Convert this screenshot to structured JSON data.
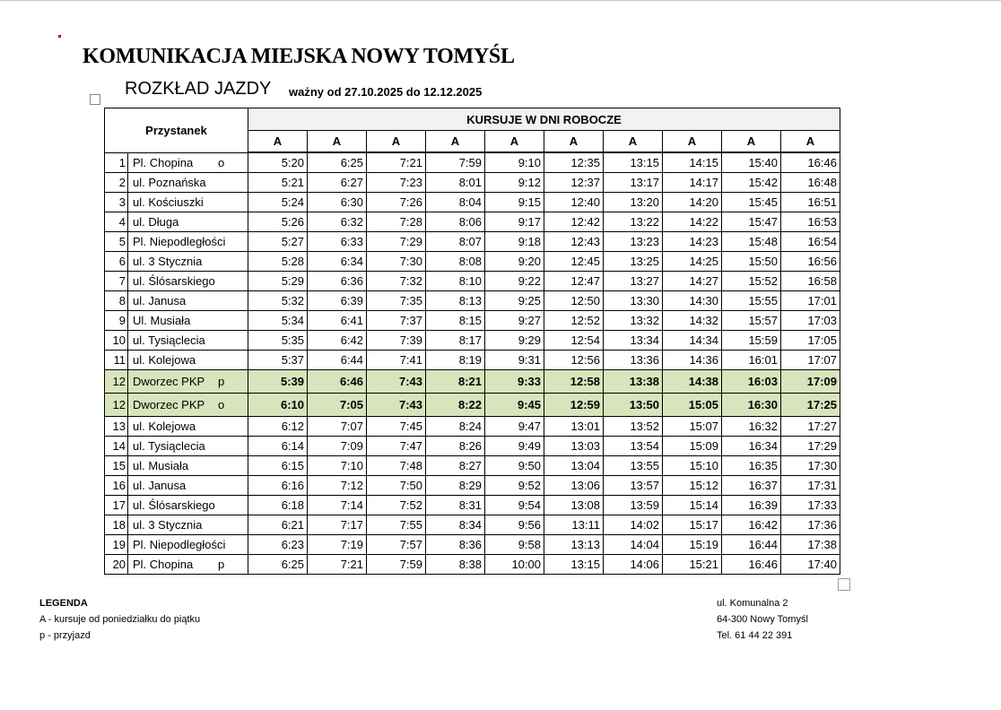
{
  "header": {
    "title": "KOMUNIKACJA MIEJSKA NOWY TOMYŚL",
    "subtitle": "ROZKŁAD JAZDY",
    "validity": "ważny od 27.10.2025 do 12.12.2025"
  },
  "table": {
    "stop_header": "Przystanek",
    "group_header": "KURSUJE W DNI ROBOCZE",
    "columns": [
      "A",
      "A",
      "A",
      "A",
      "A",
      "A",
      "A",
      "A",
      "A",
      "A"
    ],
    "rows": [
      {
        "no": 1,
        "stop": "Pl. Chopina",
        "flag": "o",
        "times": [
          "5:20",
          "6:25",
          "7:21",
          "7:59",
          "9:10",
          "12:35",
          "13:15",
          "14:15",
          "15:40",
          "16:46"
        ]
      },
      {
        "no": 2,
        "stop": "ul. Poznańska",
        "times": [
          "5:21",
          "6:27",
          "7:23",
          "8:01",
          "9:12",
          "12:37",
          "13:17",
          "14:17",
          "15:42",
          "16:48"
        ]
      },
      {
        "no": 3,
        "stop": "ul. Kościuszki",
        "times": [
          "5:24",
          "6:30",
          "7:26",
          "8:04",
          "9:15",
          "12:40",
          "13:20",
          "14:20",
          "15:45",
          "16:51"
        ]
      },
      {
        "no": 4,
        "stop": "ul. Długa",
        "times": [
          "5:26",
          "6:32",
          "7:28",
          "8:06",
          "9:17",
          "12:42",
          "13:22",
          "14:22",
          "15:47",
          "16:53"
        ]
      },
      {
        "no": 5,
        "stop": "Pl. Niepodległości",
        "times": [
          "5:27",
          "6:33",
          "7:29",
          "8:07",
          "9:18",
          "12:43",
          "13:23",
          "14:23",
          "15:48",
          "16:54"
        ]
      },
      {
        "no": 6,
        "stop": "ul. 3 Stycznia",
        "times": [
          "5:28",
          "6:34",
          "7:30",
          "8:08",
          "9:20",
          "12:45",
          "13:25",
          "14:25",
          "15:50",
          "16:56"
        ]
      },
      {
        "no": 7,
        "stop": "ul. Ślósarskiego",
        "times": [
          "5:29",
          "6:36",
          "7:32",
          "8:10",
          "9:22",
          "12:47",
          "13:27",
          "14:27",
          "15:52",
          "16:58"
        ]
      },
      {
        "no": 8,
        "stop": "ul. Janusa",
        "times": [
          "5:32",
          "6:39",
          "7:35",
          "8:13",
          "9:25",
          "12:50",
          "13:30",
          "14:30",
          "15:55",
          "17:01"
        ]
      },
      {
        "no": 9,
        "stop": "Ul. Musiała",
        "times": [
          "5:34",
          "6:41",
          "7:37",
          "8:15",
          "9:27",
          "12:52",
          "13:32",
          "14:32",
          "15:57",
          "17:03"
        ]
      },
      {
        "no": 10,
        "stop": "ul. Tysiąclecia",
        "times": [
          "5:35",
          "6:42",
          "7:39",
          "8:17",
          "9:29",
          "12:54",
          "13:34",
          "14:34",
          "15:59",
          "17:05"
        ]
      },
      {
        "no": 11,
        "stop": "ul. Kolejowa",
        "times": [
          "5:37",
          "6:44",
          "7:41",
          "8:19",
          "9:31",
          "12:56",
          "13:36",
          "14:36",
          "16:01",
          "17:07"
        ]
      },
      {
        "no": 12,
        "stop": "Dworzec PKP",
        "flag": "p",
        "highlight": true,
        "times": [
          "5:39",
          "6:46",
          "7:43",
          "8:21",
          "9:33",
          "12:58",
          "13:38",
          "14:38",
          "16:03",
          "17:09"
        ]
      },
      {
        "no": 12,
        "stop": "Dworzec PKP",
        "flag": "o",
        "highlight": true,
        "times": [
          "6:10",
          "7:05",
          "7:43",
          "8:22",
          "9:45",
          "12:59",
          "13:50",
          "15:05",
          "16:30",
          "17:25"
        ]
      },
      {
        "no": 13,
        "stop": "ul. Kolejowa",
        "times": [
          "6:12",
          "7:07",
          "7:45",
          "8:24",
          "9:47",
          "13:01",
          "13:52",
          "15:07",
          "16:32",
          "17:27"
        ]
      },
      {
        "no": 14,
        "stop": "ul. Tysiąclecia",
        "times": [
          "6:14",
          "7:09",
          "7:47",
          "8:26",
          "9:49",
          "13:03",
          "13:54",
          "15:09",
          "16:34",
          "17:29"
        ]
      },
      {
        "no": 15,
        "stop": "ul. Musiała",
        "times": [
          "6:15",
          "7:10",
          "7:48",
          "8:27",
          "9:50",
          "13:04",
          "13:55",
          "15:10",
          "16:35",
          "17:30"
        ]
      },
      {
        "no": 16,
        "stop": "ul. Janusa",
        "times": [
          "6:16",
          "7:12",
          "7:50",
          "8:29",
          "9:52",
          "13:06",
          "13:57",
          "15:12",
          "16:37",
          "17:31"
        ]
      },
      {
        "no": 17,
        "stop": "ul. Ślósarskiego",
        "times": [
          "6:18",
          "7:14",
          "7:52",
          "8:31",
          "9:54",
          "13:08",
          "13:59",
          "15:14",
          "16:39",
          "17:33"
        ]
      },
      {
        "no": 18,
        "stop": "ul. 3 Stycznia",
        "times": [
          "6:21",
          "7:17",
          "7:55",
          "8:34",
          "9:56",
          "13:11",
          "14:02",
          "15:17",
          "16:42",
          "17:36"
        ]
      },
      {
        "no": 19,
        "stop": "Pl. Niepodległości",
        "times": [
          "6:23",
          "7:19",
          "7:57",
          "8:36",
          "9:58",
          "13:13",
          "14:04",
          "15:19",
          "16:44",
          "17:38"
        ]
      },
      {
        "no": 20,
        "stop": "Pl. Chopina",
        "flag": "p",
        "times": [
          "6:25",
          "7:21",
          "7:59",
          "8:38",
          "10:00",
          "13:15",
          "14:06",
          "15:21",
          "16:46",
          "17:40"
        ]
      }
    ]
  },
  "legend": {
    "title": "LEGENDA",
    "items": [
      "A - kursuje od poniedziałku do piątku",
      "p - przyjazd"
    ]
  },
  "address": [
    "ul. Komunalna 2",
    "64-300 Nowy Tomyśl",
    "Tel. 61 44 22 391"
  ]
}
